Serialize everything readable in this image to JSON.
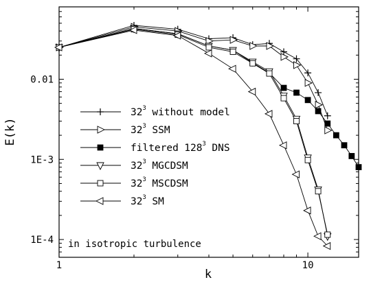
{
  "chart_data": {
    "type": "line",
    "title": "",
    "xlabel": "k",
    "ylabel": "E(k)",
    "xscale": "log",
    "yscale": "log",
    "xlim": [
      1,
      16
    ],
    "ylim": [
      6e-05,
      0.08
    ],
    "xticks": [
      {
        "value": 1,
        "label": "1"
      },
      {
        "value": 10,
        "label": "10"
      }
    ],
    "yticks": [
      {
        "value": 0.0001,
        "label": "1E-4"
      },
      {
        "value": 0.001,
        "label": "1E-3"
      },
      {
        "value": 0.01,
        "label": "0.01"
      }
    ],
    "annotation": "in isotropic turbulence",
    "legend_position": "center-left",
    "series": [
      {
        "name": "without model",
        "res": "32",
        "exp": "3",
        "marker": "plus",
        "color": "#000000",
        "x": [
          1,
          2,
          3,
          4,
          5,
          6,
          7,
          8,
          9,
          10,
          11,
          12
        ],
        "y": [
          0.025,
          0.047,
          0.042,
          0.032,
          0.033,
          0.027,
          0.028,
          0.022,
          0.018,
          0.012,
          0.0068,
          0.0035
        ]
      },
      {
        "name": "SSM",
        "res": "32",
        "exp": "3",
        "marker": "triangle-right",
        "color": "#000000",
        "x": [
          1,
          2,
          3,
          4,
          5,
          6,
          7,
          8,
          9,
          10,
          11,
          12
        ],
        "y": [
          0.025,
          0.045,
          0.04,
          0.03,
          0.031,
          0.026,
          0.026,
          0.019,
          0.015,
          0.009,
          0.0048,
          0.0023
        ]
      },
      {
        "name": "DNS",
        "prefix": "filtered",
        "res": "128",
        "exp": "3",
        "marker": "square-filled",
        "color": "#000000",
        "x": [
          1,
          2,
          3,
          4,
          5,
          6,
          7,
          8,
          9,
          10,
          11,
          12,
          13,
          14,
          15,
          16
        ],
        "y": [
          0.025,
          0.043,
          0.037,
          0.026,
          0.023,
          0.016,
          0.012,
          0.0078,
          0.0068,
          0.0055,
          0.004,
          0.0028,
          0.002,
          0.0015,
          0.0011,
          0.0008
        ]
      },
      {
        "name": "MGCDSM",
        "res": "32",
        "exp": "3",
        "marker": "triangle-down",
        "color": "#000000",
        "x": [
          1,
          2,
          3,
          4,
          5,
          6,
          7,
          8,
          9,
          10,
          11,
          12
        ],
        "y": [
          0.025,
          0.043,
          0.037,
          0.026,
          0.023,
          0.0165,
          0.0125,
          0.0062,
          0.0032,
          0.00105,
          0.00042,
          0.00011
        ]
      },
      {
        "name": "MSCDSM",
        "res": "32",
        "exp": "3",
        "marker": "square-open",
        "color": "#000000",
        "x": [
          1,
          2,
          3,
          4,
          5,
          6,
          7,
          8,
          9,
          10,
          11,
          12
        ],
        "y": [
          0.025,
          0.042,
          0.036,
          0.025,
          0.022,
          0.0158,
          0.0118,
          0.0058,
          0.003,
          0.00098,
          0.0004,
          0.000115
        ]
      },
      {
        "name": "SM",
        "res": "32",
        "exp": "3",
        "marker": "triangle-left",
        "color": "#000000",
        "x": [
          1,
          2,
          3,
          4,
          5,
          6,
          7,
          8,
          9,
          10,
          11,
          12
        ],
        "y": [
          0.025,
          0.041,
          0.035,
          0.021,
          0.0135,
          0.007,
          0.0037,
          0.0015,
          0.00065,
          0.00023,
          0.00011,
          8.3e-05
        ]
      }
    ]
  }
}
